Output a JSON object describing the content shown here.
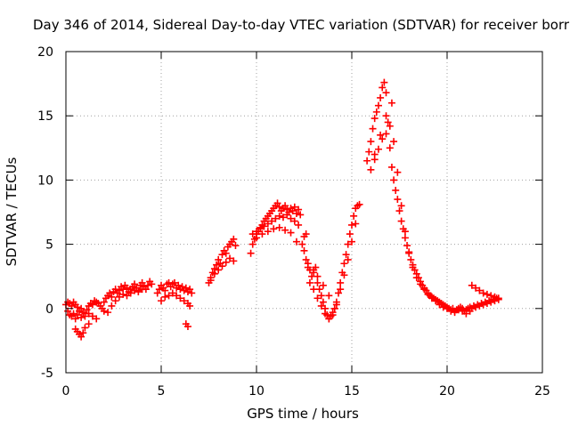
{
  "chart_data": {
    "type": "scatter",
    "title": "Day 346 of 2014, Sidereal Day-to-day VTEC variation (SDTVAR) for receiver borr",
    "xlabel": "GPS time / hours",
    "ylabel": "SDTVAR / TECUs",
    "xlim": [
      0,
      25
    ],
    "ylim": [
      -5,
      20
    ],
    "xticks": [
      0,
      5,
      10,
      15,
      20,
      25
    ],
    "yticks": [
      -5,
      0,
      5,
      10,
      15,
      20
    ],
    "grid": true,
    "marker": "+",
    "marker_color": "#ff0000",
    "series": [
      {
        "name": "SDTVAR",
        "x": [
          0.0,
          0.1,
          0.2,
          0.3,
          0.4,
          0.5,
          0.6,
          0.7,
          0.8,
          0.9,
          1.0,
          1.1,
          1.2,
          1.3,
          1.4,
          1.5,
          1.6,
          1.7,
          1.8,
          1.9,
          2.0,
          0.1,
          0.2,
          0.3,
          0.4,
          0.5,
          0.6,
          0.8,
          1.0,
          1.2,
          1.4,
          1.6,
          0.5,
          0.6,
          0.7,
          0.8,
          0.9,
          1.0,
          1.2,
          2.0,
          2.1,
          2.2,
          2.3,
          2.4,
          2.5,
          2.6,
          2.7,
          2.8,
          2.9,
          3.0,
          3.1,
          3.2,
          3.3,
          3.4,
          3.5,
          3.6,
          3.7,
          3.8,
          3.9,
          4.0,
          4.1,
          4.2,
          4.3,
          4.4,
          4.5,
          2.2,
          2.4,
          2.6,
          2.8,
          3.0,
          3.2,
          3.4,
          3.6,
          3.8,
          4.0,
          4.8,
          4.9,
          5.0,
          5.1,
          5.2,
          5.3,
          5.4,
          5.5,
          5.6,
          5.7,
          5.8,
          5.9,
          6.0,
          6.1,
          6.2,
          6.3,
          6.4,
          6.5,
          6.6,
          5.0,
          5.2,
          5.4,
          5.6,
          5.8,
          6.0,
          6.2,
          6.4,
          6.5,
          6.3,
          6.4,
          7.5,
          7.6,
          7.7,
          7.8,
          7.9,
          8.0,
          8.1,
          8.2,
          8.3,
          8.4,
          8.5,
          8.6,
          8.7,
          8.8,
          8.9,
          7.6,
          7.8,
          8.0,
          8.2,
          8.4,
          8.6,
          8.8,
          9.7,
          9.8,
          9.9,
          10.0,
          10.1,
          10.2,
          10.3,
          10.4,
          10.5,
          10.6,
          10.7,
          10.8,
          10.9,
          11.0,
          11.1,
          11.2,
          11.3,
          11.4,
          11.5,
          11.6,
          11.7,
          11.8,
          11.9,
          12.0,
          12.1,
          12.2,
          12.3,
          9.8,
          10.0,
          10.2,
          10.4,
          10.6,
          10.8,
          11.0,
          11.2,
          11.4,
          11.6,
          11.8,
          12.0,
          12.2,
          10.0,
          10.3,
          10.6,
          10.9,
          11.2,
          11.5,
          11.8,
          12.1,
          12.4,
          12.5,
          12.6,
          12.7,
          12.5,
          12.6,
          12.7,
          12.8,
          12.9,
          13.0,
          13.1,
          13.2,
          13.3,
          13.4,
          13.5,
          13.6,
          13.7,
          13.8,
          13.9,
          14.0,
          14.1,
          14.2,
          14.3,
          14.4,
          14.5,
          14.6,
          14.7,
          14.8,
          14.9,
          15.0,
          15.1,
          15.2,
          15.3,
          15.4,
          12.8,
          13.0,
          13.2,
          13.4,
          13.6,
          13.8,
          14.0,
          14.2,
          14.4,
          14.6,
          14.8,
          15.0,
          15.2,
          13.0,
          13.2,
          13.5,
          13.8,
          14.1,
          15.8,
          15.9,
          16.0,
          16.1,
          16.2,
          16.3,
          16.4,
          16.5,
          16.6,
          16.7,
          16.8,
          16.9,
          17.0,
          17.1,
          17.2,
          17.3,
          17.4,
          17.5,
          17.6,
          17.7,
          17.8,
          17.9,
          18.0,
          18.1,
          18.2,
          18.3,
          18.4,
          18.5,
          18.6,
          18.7,
          18.8,
          18.9,
          19.0,
          19.1,
          19.2,
          19.3,
          19.4,
          19.5,
          19.6,
          19.7,
          19.8,
          19.9,
          20.0,
          20.1,
          20.2,
          20.3,
          20.4,
          20.5,
          20.6,
          20.7,
          20.8,
          20.9,
          21.0,
          21.1,
          21.2,
          21.3,
          21.4,
          21.5,
          21.6,
          21.7,
          21.8,
          21.9,
          22.0,
          22.1,
          22.2,
          22.3,
          22.4,
          22.5,
          22.6,
          22.7,
          16.0,
          16.2,
          16.4,
          16.6,
          16.8,
          17.0,
          17.2,
          17.4,
          17.6,
          17.8,
          18.0,
          18.2,
          18.4,
          18.6,
          18.8,
          19.0,
          19.2,
          19.4,
          19.6,
          19.8,
          20.0,
          20.2,
          20.4,
          20.6,
          20.8,
          21.0,
          21.2,
          16.2,
          16.5,
          16.8,
          17.1,
          21.3,
          21.5,
          21.7,
          21.9,
          22.1,
          22.3,
          22.5,
          22.7
        ],
        "y": [
          0.3,
          0.5,
          0.4,
          0.2,
          0.5,
          0.3,
          0.1,
          -0.2,
          0.0,
          -0.3,
          -0.4,
          -0.1,
          0.2,
          0.4,
          0.3,
          0.6,
          0.5,
          0.4,
          0.2,
          0.0,
          -0.2,
          -0.2,
          -0.5,
          -0.6,
          -0.4,
          -0.8,
          -0.5,
          -0.7,
          -0.6,
          -0.4,
          -0.6,
          -0.8,
          -1.6,
          -1.8,
          -2.0,
          -2.2,
          -1.9,
          -1.5,
          -1.2,
          0.5,
          0.8,
          1.0,
          1.2,
          0.9,
          1.3,
          1.5,
          1.2,
          1.4,
          1.7,
          1.5,
          1.8,
          1.6,
          1.3,
          1.5,
          1.7,
          1.9,
          1.6,
          1.4,
          1.8,
          2.0,
          1.7,
          1.5,
          1.8,
          2.1,
          1.9,
          -0.3,
          0.2,
          0.6,
          0.9,
          1.1,
          1.0,
          1.2,
          1.4,
          1.3,
          1.5,
          1.2,
          1.5,
          1.8,
          1.6,
          1.4,
          1.9,
          2.0,
          1.7,
          1.9,
          2.0,
          1.6,
          1.8,
          1.5,
          1.7,
          1.4,
          1.6,
          1.3,
          1.5,
          1.2,
          0.6,
          0.9,
          1.0,
          1.2,
          1.0,
          0.8,
          0.6,
          0.4,
          0.2,
          -1.2,
          -1.4,
          2.0,
          2.4,
          2.8,
          3.1,
          3.4,
          3.8,
          3.5,
          4.2,
          4.5,
          4.3,
          4.8,
          5.0,
          5.2,
          5.4,
          4.9,
          2.2,
          2.7,
          3.0,
          3.3,
          3.6,
          3.9,
          3.7,
          4.3,
          5.0,
          5.4,
          5.8,
          6.0,
          6.3,
          6.5,
          6.8,
          7.0,
          7.2,
          7.4,
          7.6,
          7.8,
          8.0,
          8.2,
          7.9,
          7.6,
          7.8,
          8.0,
          7.7,
          7.5,
          7.8,
          7.6,
          7.9,
          7.4,
          7.7,
          7.3,
          5.8,
          6.0,
          6.2,
          6.4,
          6.6,
          6.8,
          7.0,
          7.2,
          7.1,
          7.3,
          7.0,
          6.8,
          6.5,
          5.5,
          5.8,
          6.0,
          6.2,
          6.3,
          6.1,
          5.9,
          5.2,
          5.0,
          4.5,
          3.8,
          3.2,
          5.6,
          5.8,
          3.5,
          3.0,
          2.5,
          2.8,
          3.2,
          2.0,
          1.5,
          1.0,
          0.5,
          0.0,
          -0.5,
          -0.8,
          -0.6,
          -0.3,
          0.0,
          0.5,
          1.2,
          2.0,
          2.8,
          3.5,
          4.2,
          5.0,
          5.8,
          6.5,
          7.2,
          7.8,
          8.0,
          8.1,
          2.0,
          1.5,
          0.8,
          0.2,
          -0.4,
          -0.8,
          -0.5,
          0.3,
          1.5,
          2.6,
          3.8,
          5.2,
          6.6,
          3.0,
          2.5,
          1.8,
          1.0,
          0.0,
          11.5,
          12.2,
          13.0,
          14.0,
          14.8,
          15.3,
          15.8,
          16.4,
          17.2,
          17.6,
          16.8,
          14.5,
          12.5,
          11.0,
          10.0,
          9.2,
          8.5,
          7.6,
          6.8,
          6.2,
          5.5,
          4.9,
          4.3,
          3.8,
          3.4,
          3.0,
          2.7,
          2.4,
          2.1,
          1.8,
          1.6,
          1.4,
          1.2,
          1.0,
          0.9,
          0.8,
          0.7,
          0.6,
          0.5,
          0.4,
          0.3,
          0.2,
          0.1,
          0.0,
          -0.1,
          0.0,
          -0.2,
          -0.1,
          0.0,
          0.1,
          0.0,
          -0.2,
          -0.1,
          0.0,
          0.1,
          0.0,
          0.2,
          0.1,
          0.3,
          0.2,
          0.4,
          0.3,
          0.5,
          0.4,
          0.6,
          0.5,
          0.7,
          0.6,
          0.8,
          0.7,
          10.8,
          11.6,
          12.4,
          13.2,
          13.6,
          14.2,
          13.0,
          10.6,
          8.0,
          6.0,
          4.4,
          3.2,
          2.4,
          1.9,
          1.5,
          1.1,
          0.8,
          0.6,
          0.3,
          0.1,
          0.0,
          -0.2,
          -0.3,
          -0.1,
          -0.2,
          -0.4,
          -0.2,
          12.0,
          13.5,
          15.0,
          16.0,
          1.8,
          1.6,
          1.4,
          1.2,
          1.1,
          1.0,
          0.9,
          0.8
        ]
      }
    ]
  }
}
